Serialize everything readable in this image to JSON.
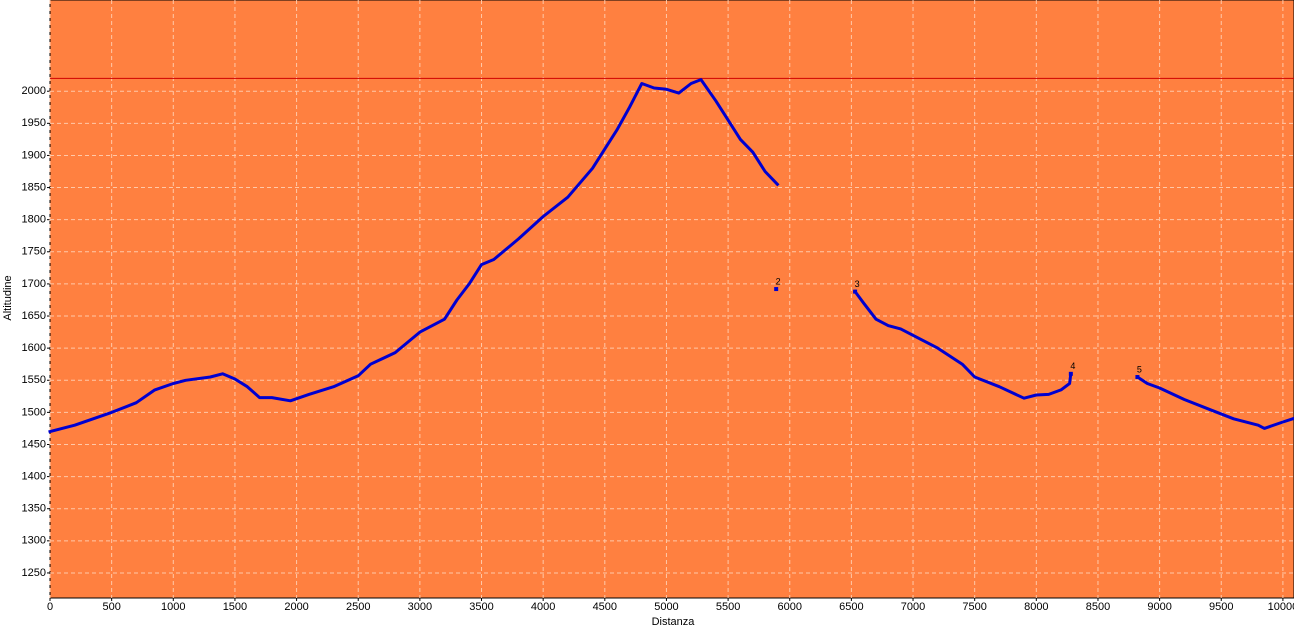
{
  "chart_data": {
    "type": "line",
    "x_label": "Distanza",
    "y_label": "Altitudine",
    "background": "#ff8040",
    "grid": true,
    "xlim": [
      0,
      10090
    ],
    "ylim": [
      1211,
      2142
    ],
    "xticks": [
      0,
      500,
      1000,
      1500,
      2000,
      2500,
      3000,
      3500,
      4000,
      4500,
      5000,
      5500,
      6000,
      6500,
      7000,
      7500,
      8000,
      8500,
      9000,
      9500,
      10000
    ],
    "yticks": [
      1250,
      1300,
      1350,
      1400,
      1450,
      1500,
      1550,
      1600,
      1650,
      1700,
      1750,
      1800,
      1850,
      1900,
      1950,
      2000
    ],
    "ref_line": {
      "value": 2020,
      "color": "#d00000"
    },
    "series": [
      {
        "color": "#0000d0",
        "x": [
          0,
          200,
          500,
          700,
          850,
          1000,
          1100,
          1300,
          1400,
          1500,
          1600,
          1700,
          1800,
          1950,
          2100,
          2300,
          2500,
          2600,
          2800,
          3000,
          3200,
          3300,
          3400,
          3500,
          3600,
          3800,
          4000,
          4200,
          4400,
          4600,
          4700,
          4800,
          4900,
          5000,
          5100,
          5200,
          5280,
          5400,
          5500,
          5600,
          5700,
          5800,
          5900,
          null,
          5890,
          null,
          6530,
          6600,
          6700,
          6800,
          6900,
          7000,
          7200,
          7400,
          7500,
          7700,
          7900,
          8000,
          8100,
          8200,
          8270,
          8280,
          null,
          8820,
          8900,
          9000,
          9200,
          9400,
          9600,
          9800,
          9850,
          10000,
          10080
        ],
        "values": [
          1470,
          1480,
          1500,
          1515,
          1535,
          1545,
          1550,
          1555,
          1560,
          1552,
          1540,
          1523,
          1523,
          1518,
          1528,
          1540,
          1557,
          1575,
          1593,
          1625,
          1645,
          1675,
          1700,
          1730,
          1738,
          1770,
          1805,
          1835,
          1880,
          1940,
          1975,
          2012,
          2005,
          2003,
          1997,
          2012,
          2018,
          1985,
          1955,
          1925,
          1905,
          1875,
          1855,
          null,
          1692,
          null,
          1688,
          1670,
          1645,
          1635,
          1630,
          1620,
          1600,
          1575,
          1555,
          1540,
          1522,
          1527,
          1528,
          1535,
          1545,
          1560,
          null,
          1555,
          1545,
          1538,
          1520,
          1505,
          1490,
          1480,
          1475,
          1485,
          1490
        ]
      }
    ],
    "markers": [
      {
        "label": "2",
        "x": 5890,
        "y": 1692
      },
      {
        "label": "3",
        "x": 6530,
        "y": 1688
      },
      {
        "label": "4",
        "x": 8280,
        "y": 1560
      },
      {
        "label": "5",
        "x": 8820,
        "y": 1555
      }
    ]
  }
}
